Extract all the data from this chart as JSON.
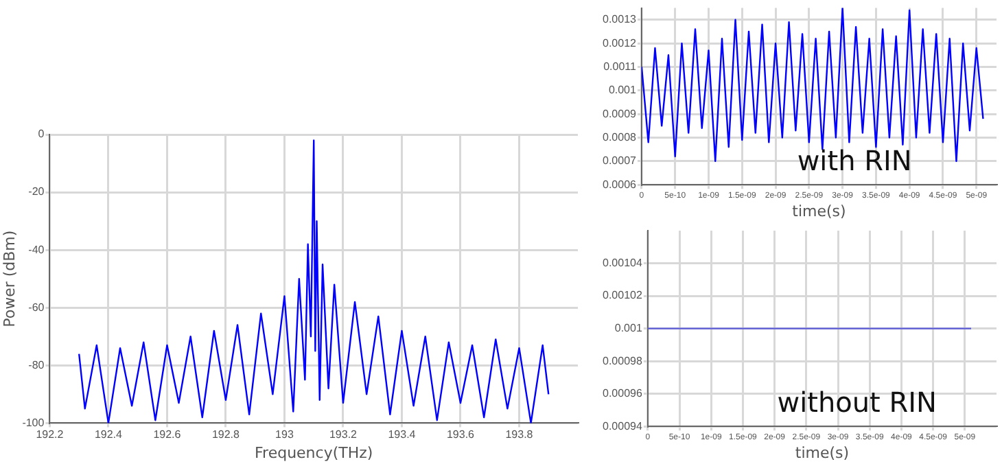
{
  "chart_data": [
    {
      "type": "line",
      "xlabel": "Frequency(THz)",
      "ylabel": "Power (dBm)",
      "xlim": [
        192.2,
        194.0
      ],
      "xticks": [
        192.2,
        192.4,
        192.6,
        192.8,
        193,
        193.2,
        193.4,
        193.6,
        193.8
      ],
      "ylim": [
        -100,
        0
      ],
      "yticks": [
        -100,
        -80,
        -60,
        -40,
        -20,
        0
      ],
      "grid": true,
      "legend": false,
      "marker": "none",
      "line_style": "solid",
      "series": [
        {
          "color": "#0000ff",
          "x": [
            192.3,
            192.32,
            192.36,
            192.4,
            192.44,
            192.48,
            192.52,
            192.56,
            192.6,
            192.64,
            192.68,
            192.72,
            192.76,
            192.8,
            192.84,
            192.88,
            192.92,
            192.96,
            193.0,
            193.03,
            193.05,
            193.07,
            193.08,
            193.09,
            193.1,
            193.105,
            193.11,
            193.12,
            193.13,
            193.15,
            193.17,
            193.2,
            193.24,
            193.28,
            193.32,
            193.36,
            193.4,
            193.44,
            193.48,
            193.52,
            193.56,
            193.6,
            193.64,
            193.68,
            193.72,
            193.76,
            193.8,
            193.84,
            193.88,
            193.9
          ],
          "values": [
            -76,
            -95,
            -73,
            -100,
            -74,
            -94,
            -72,
            -99,
            -73,
            -93,
            -70,
            -98,
            -68,
            -92,
            -66,
            -97,
            -62,
            -90,
            -56,
            -96,
            -50,
            -85,
            -38,
            -70,
            -2,
            -75,
            -30,
            -92,
            -45,
            -88,
            -52,
            -93,
            -58,
            -90,
            -63,
            -97,
            -68,
            -94,
            -70,
            -99,
            -72,
            -93,
            -73,
            -98,
            -71,
            -95,
            -74,
            -100,
            -73,
            -90
          ]
        }
      ]
    },
    {
      "type": "line",
      "xlabel": "time(s)",
      "annotations": [
        "with RIN"
      ],
      "xlim": [
        0,
        5.3e-09
      ],
      "xticks": [
        0,
        {
          "value": 5e-10,
          "label": "5e-10"
        },
        {
          "value": 1e-09,
          "label": "1e-09"
        },
        {
          "value": 1.5e-09,
          "label": "1.5e-09"
        },
        {
          "value": 2e-09,
          "label": "2e-09"
        },
        {
          "value": 2.5e-09,
          "label": "2.5e-09"
        },
        {
          "value": 3e-09,
          "label": "3e-09"
        },
        {
          "value": 3.5e-09,
          "label": "3.5e-09"
        },
        {
          "value": 4e-09,
          "label": "4e-09"
        },
        {
          "value": 4.5e-09,
          "label": "4.5e-09"
        },
        {
          "value": 5e-09,
          "label": "5e-09"
        }
      ],
      "ylim": [
        0.0006,
        0.00135
      ],
      "yticks": [
        0.0006,
        0.0007,
        0.0008,
        0.0009,
        0.001,
        0.0011,
        0.0012,
        0.0013
      ],
      "grid": true,
      "legend": false,
      "marker": "none",
      "line_style": "solid",
      "series": [
        {
          "color": "#0000ff",
          "x": [
            0,
            1e-10,
            2e-10,
            3e-10,
            4e-10,
            5e-10,
            6e-10,
            7e-10,
            8e-10,
            9e-10,
            1e-09,
            1.1e-09,
            1.2e-09,
            1.3e-09,
            1.4e-09,
            1.5e-09,
            1.6e-09,
            1.7e-09,
            1.8e-09,
            1.9e-09,
            2e-09,
            2.1e-09,
            2.2e-09,
            2.3e-09,
            2.4e-09,
            2.5e-09,
            2.6e-09,
            2.7e-09,
            2.8e-09,
            2.9e-09,
            3e-09,
            3.1e-09,
            3.2e-09,
            3.3e-09,
            3.4e-09,
            3.5e-09,
            3.6e-09,
            3.7e-09,
            3.8e-09,
            3.9e-09,
            4e-09,
            4.1e-09,
            4.2e-09,
            4.3e-09,
            4.4e-09,
            4.5e-09,
            4.6e-09,
            4.7e-09,
            4.8e-09,
            4.9e-09,
            5e-09,
            5.1e-09
          ],
          "values": [
            0.0011,
            0.00078,
            0.00118,
            0.00085,
            0.00115,
            0.00072,
            0.0012,
            0.00082,
            0.00126,
            0.00084,
            0.00117,
            0.0007,
            0.00122,
            0.00076,
            0.0013,
            0.00079,
            0.00125,
            0.00082,
            0.00128,
            0.00078,
            0.0012,
            0.0008,
            0.00129,
            0.00083,
            0.00124,
            0.00078,
            0.00122,
            0.00075,
            0.00125,
            0.0008,
            0.00135,
            0.00078,
            0.00127,
            0.00082,
            0.00122,
            0.00076,
            0.00126,
            0.0008,
            0.00123,
            0.00077,
            0.00134,
            0.0008,
            0.00126,
            0.00082,
            0.00124,
            0.00078,
            0.00122,
            0.0007,
            0.0012,
            0.00083,
            0.00118,
            0.00088
          ]
        }
      ]
    },
    {
      "type": "line",
      "xlabel": "time(s)",
      "annotations": [
        "without RIN"
      ],
      "xlim": [
        0,
        5.5e-09
      ],
      "xticks": [
        0,
        {
          "value": 5e-10,
          "label": "5e-10"
        },
        {
          "value": 1e-09,
          "label": "1e-09"
        },
        {
          "value": 1.5e-09,
          "label": "1.5e-09"
        },
        {
          "value": 2e-09,
          "label": "2e-09"
        },
        {
          "value": 2.5e-09,
          "label": "2.5e-09"
        },
        {
          "value": 3e-09,
          "label": "3e-09"
        },
        {
          "value": 3.5e-09,
          "label": "3.5e-09"
        },
        {
          "value": 4e-09,
          "label": "4e-09"
        },
        {
          "value": 4.5e-09,
          "label": "4.5e-09"
        },
        {
          "value": 5e-09,
          "label": "5e-09"
        }
      ],
      "ylim": [
        0.00094,
        0.00106
      ],
      "yticks": [
        0.00094,
        0.00096,
        0.00098,
        0.001,
        0.00102,
        0.00104
      ],
      "grid": true,
      "legend": false,
      "marker": "none",
      "line_style": "solid",
      "series": [
        {
          "color": "#5b5bd6",
          "x": [
            0,
            5.1e-09
          ],
          "values": [
            0.001,
            0.001
          ]
        }
      ]
    }
  ]
}
